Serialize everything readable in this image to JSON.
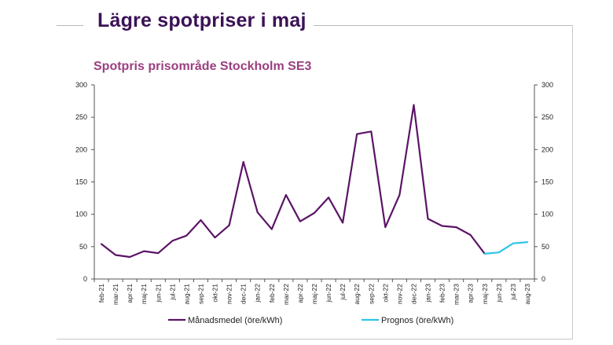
{
  "page": {
    "title": "Lägre spotpriser i maj"
  },
  "chart_data": {
    "type": "line",
    "title": "Spotpris prisområde Stockholm SE3",
    "xlabel": "",
    "ylabel": "",
    "ylim": [
      0,
      300
    ],
    "yticks": [
      0,
      50,
      100,
      150,
      200,
      250,
      300
    ],
    "secondary_yaxis": true,
    "grid": false,
    "legend_position": "bottom",
    "categories": [
      "feb-21",
      "mar-21",
      "apr-21",
      "maj-21",
      "jun-21",
      "jul-21",
      "aug-21",
      "sep-21",
      "okt-21",
      "nov-21",
      "dec-21",
      "jan-22",
      "feb-22",
      "mar-22",
      "apr-22",
      "maj-22",
      "jun-22",
      "jul-22",
      "aug-22",
      "sep-22",
      "okt-22",
      "nov-22",
      "dec-22",
      "jan-23",
      "feb-23",
      "mar-23",
      "apr-23",
      "maj-23",
      "jun-23",
      "jul-23",
      "aug-23"
    ],
    "series": [
      {
        "name": "Månadsmedel (öre/kWh)",
        "color": "#5b1466",
        "values": [
          54,
          37,
          34,
          43,
          40,
          59,
          67,
          91,
          64,
          83,
          181,
          103,
          77,
          130,
          89,
          102,
          126,
          87,
          224,
          228,
          80,
          130,
          269,
          93,
          82,
          80,
          68,
          39,
          null,
          null,
          null
        ]
      },
      {
        "name": "Prognos (öre/kWh)",
        "color": "#2ec4e6",
        "values": [
          null,
          null,
          null,
          null,
          null,
          null,
          null,
          null,
          null,
          null,
          null,
          null,
          null,
          null,
          null,
          null,
          null,
          null,
          null,
          null,
          null,
          null,
          null,
          null,
          null,
          null,
          null,
          39,
          41,
          55,
          57
        ]
      }
    ]
  }
}
